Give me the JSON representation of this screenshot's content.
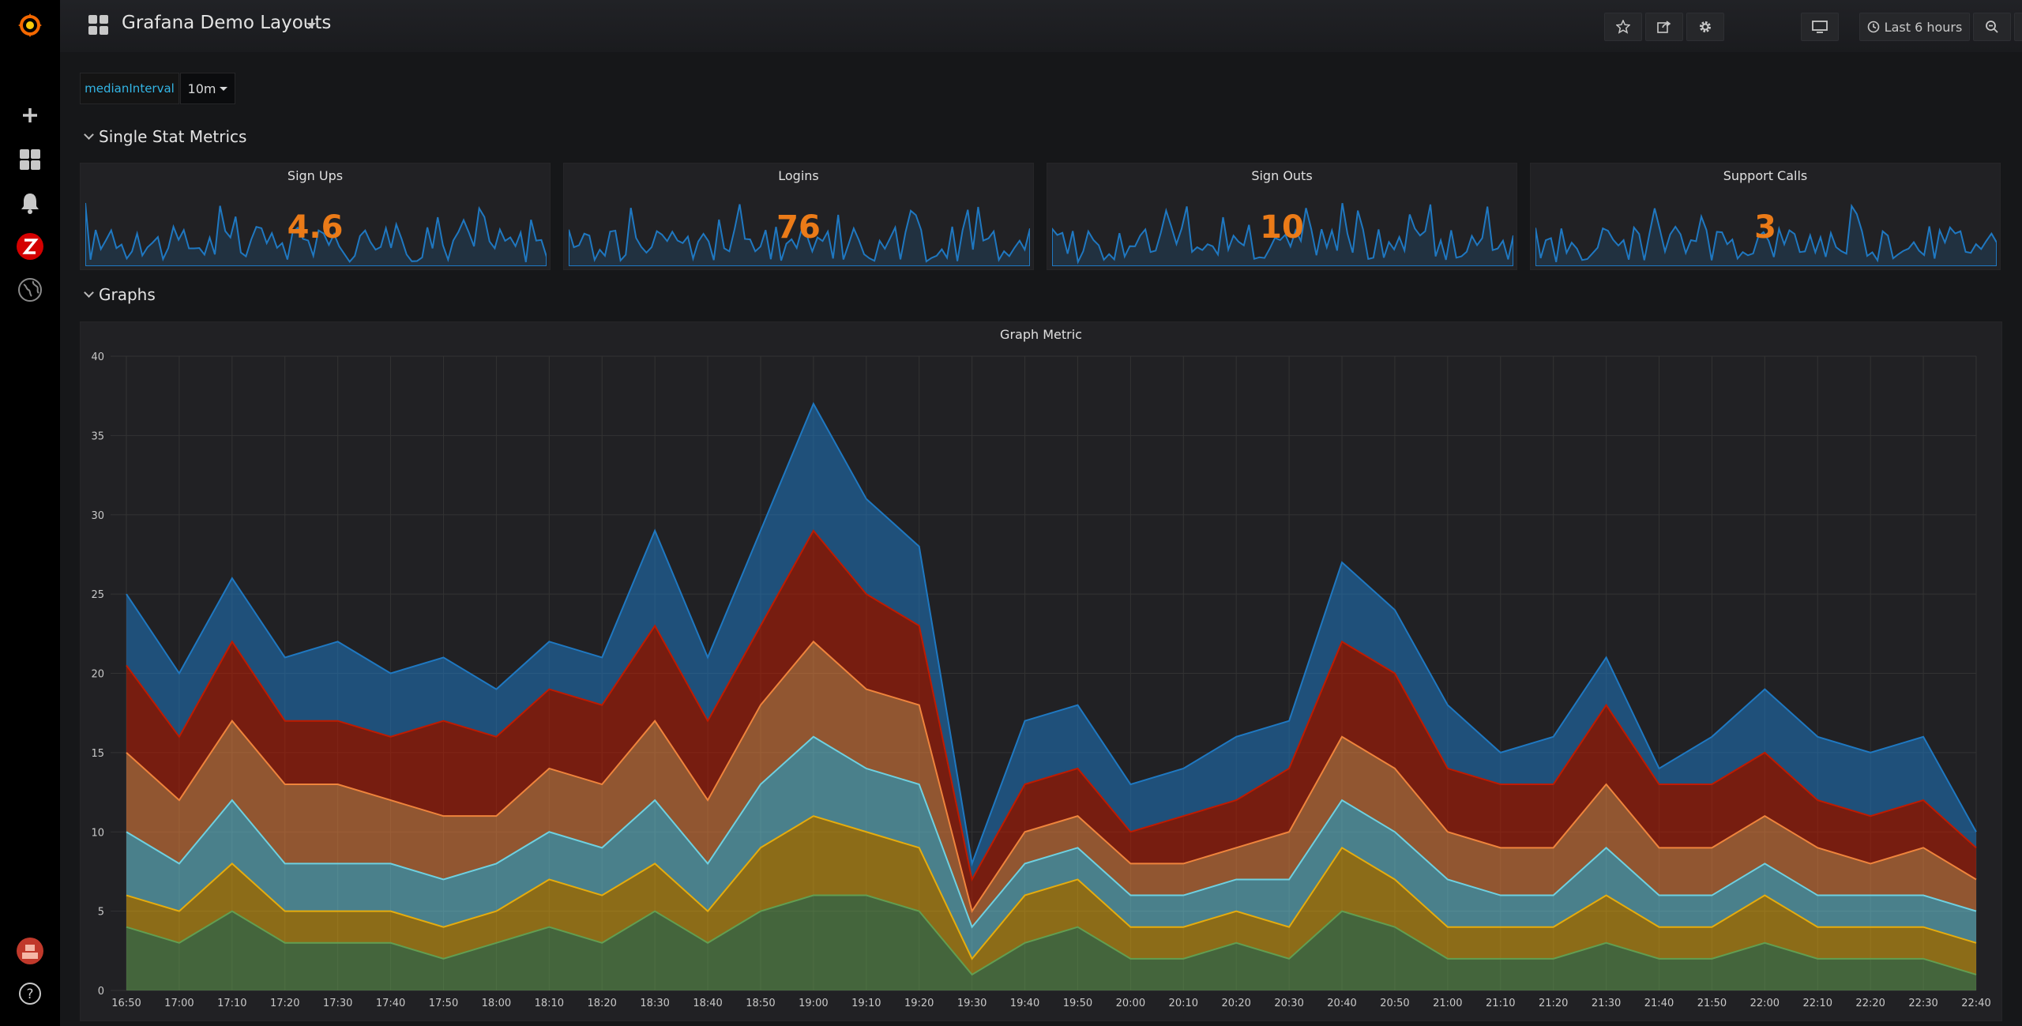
{
  "app": {
    "dashboard_title": "Grafana Demo Layouts",
    "toolbar": {
      "time_range": "Last 6 hours"
    },
    "icons": {
      "sidebar": [
        "grafana-logo-icon",
        "plus-icon",
        "dashboards-icon",
        "bell-icon",
        "zabbix-icon",
        "globe-icon",
        "user-avatar-icon",
        "help-icon"
      ],
      "toolbar": [
        "star-icon",
        "share-icon",
        "gear-icon",
        "tv-icon",
        "clock-icon",
        "zoom-out-icon",
        "refresh-icon"
      ]
    },
    "colors": {
      "accent": "#33b5e5",
      "stat_value": "#eb7b18",
      "series": [
        "#1f78c1",
        "#bf1b00",
        "#ef843c",
        "#6ed0e0",
        "#e5ac0e",
        "#629e51"
      ]
    }
  },
  "variables": {
    "label": "medianInterval",
    "value": "10m"
  },
  "rows": {
    "single_stat": "Single Stat Metrics",
    "graphs": "Graphs"
  },
  "stats": [
    {
      "title": "Sign Ups",
      "value": "4.6"
    },
    {
      "title": "Logins",
      "value": "76"
    },
    {
      "title": "Sign Outs",
      "value": "10"
    },
    {
      "title": "Support Calls",
      "value": "3"
    }
  ],
  "chart_data": {
    "type": "area",
    "title": "Graph Metric",
    "stacked": true,
    "x": [
      "16:50",
      "17:00",
      "17:10",
      "17:20",
      "17:30",
      "17:40",
      "17:50",
      "18:00",
      "18:10",
      "18:20",
      "18:30",
      "18:40",
      "18:50",
      "19:00",
      "19:10",
      "19:20",
      "19:30",
      "19:40",
      "19:50",
      "20:00",
      "20:10",
      "20:20",
      "20:30",
      "20:40",
      "20:50",
      "21:00",
      "21:10",
      "21:20",
      "21:30",
      "21:40",
      "21:50",
      "22:00",
      "22:10",
      "22:20",
      "22:30",
      "22:40"
    ],
    "ylim": [
      0,
      40
    ],
    "yticks": [
      0,
      5,
      10,
      15,
      20,
      25,
      30,
      35,
      40
    ],
    "grid": true,
    "series": [
      {
        "values": [
          4.5,
          4,
          4,
          4,
          5,
          4,
          4,
          3,
          3,
          3,
          6,
          4,
          6,
          8,
          6,
          5,
          1,
          4,
          4,
          3,
          3,
          4,
          3,
          5,
          4,
          4,
          2,
          3,
          3,
          1,
          3,
          4,
          4,
          4,
          4,
          1
        ]
      },
      {
        "values": [
          5.5,
          4,
          5,
          4,
          4,
          4,
          6,
          5,
          5,
          5,
          6,
          5,
          5,
          7,
          6,
          5,
          2,
          3,
          3,
          2,
          3,
          3,
          4,
          6,
          6,
          4,
          4,
          4,
          5,
          4,
          4,
          4,
          3,
          3,
          3,
          2
        ]
      },
      {
        "values": [
          5,
          4,
          5,
          5,
          5,
          4,
          4,
          3,
          4,
          4,
          5,
          4,
          5,
          6,
          5,
          5,
          1,
          2,
          2,
          2,
          2,
          2,
          3,
          4,
          4,
          3,
          3,
          3,
          4,
          3,
          3,
          3,
          3,
          2,
          3,
          2
        ]
      },
      {
        "values": [
          4,
          3,
          4,
          3,
          3,
          3,
          3,
          3,
          3,
          3,
          4,
          3,
          4,
          5,
          4,
          4,
          2,
          2,
          2,
          2,
          2,
          2,
          3,
          3,
          3,
          3,
          2,
          2,
          3,
          2,
          2,
          2,
          2,
          2,
          2,
          2
        ]
      },
      {
        "values": [
          2,
          2,
          3,
          2,
          2,
          2,
          2,
          2,
          3,
          3,
          3,
          2,
          4,
          5,
          4,
          4,
          1,
          3,
          3,
          2,
          2,
          2,
          2,
          4,
          3,
          2,
          2,
          2,
          3,
          2,
          2,
          3,
          2,
          2,
          2,
          2
        ]
      },
      {
        "values": [
          4,
          3,
          5,
          3,
          3,
          3,
          2,
          3,
          4,
          3,
          5,
          3,
          5,
          6,
          6,
          5,
          1,
          3,
          4,
          2,
          2,
          3,
          2,
          5,
          4,
          2,
          2,
          2,
          3,
          2,
          2,
          3,
          2,
          2,
          2,
          1
        ]
      }
    ]
  }
}
